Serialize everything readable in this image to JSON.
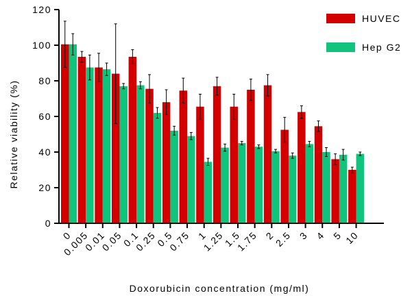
{
  "chart_data": {
    "type": "bar",
    "title": "",
    "xlabel": "Doxorubicin concentration (mg/ml)",
    "ylabel": "Relative viability (%)",
    "ylim": [
      0,
      120
    ],
    "yticks": [
      0,
      20,
      40,
      60,
      80,
      100,
      120
    ],
    "categories": [
      "0",
      "0.005",
      "0.01",
      "0.05",
      "0.1",
      "0.25",
      "0.5",
      "0.75",
      "1",
      "1.25",
      "1.5",
      "1.75",
      "2",
      "2.5",
      "3",
      "4",
      "5",
      "10"
    ],
    "legend_position": "top-right",
    "grid": false,
    "series": [
      {
        "name": "HUVEC",
        "color": "#d40000",
        "values": [
          100.5,
          93.5,
          87.5,
          84,
          93.5,
          75.5,
          68,
          74.5,
          65.5,
          77,
          65.5,
          75,
          77.5,
          52.5,
          62.5,
          54.5,
          36,
          30
        ],
        "errors": [
          13,
          3,
          8,
          28,
          4,
          8,
          7,
          7,
          7,
          5,
          7,
          6,
          6,
          7,
          3.5,
          3,
          3,
          1.5
        ]
      },
      {
        "name": "Hep G2",
        "color": "#10c47d",
        "values": [
          100.5,
          87.5,
          86.5,
          77,
          77.5,
          62,
          52,
          49,
          34.5,
          42.5,
          45,
          43,
          40.5,
          38,
          44.5,
          40,
          38.5,
          39
        ],
        "errors": [
          6,
          7,
          3.5,
          1.5,
          2,
          3,
          2.5,
          2,
          2,
          2,
          1,
          1,
          1,
          1.5,
          1.5,
          2.5,
          3,
          1
        ]
      }
    ]
  }
}
